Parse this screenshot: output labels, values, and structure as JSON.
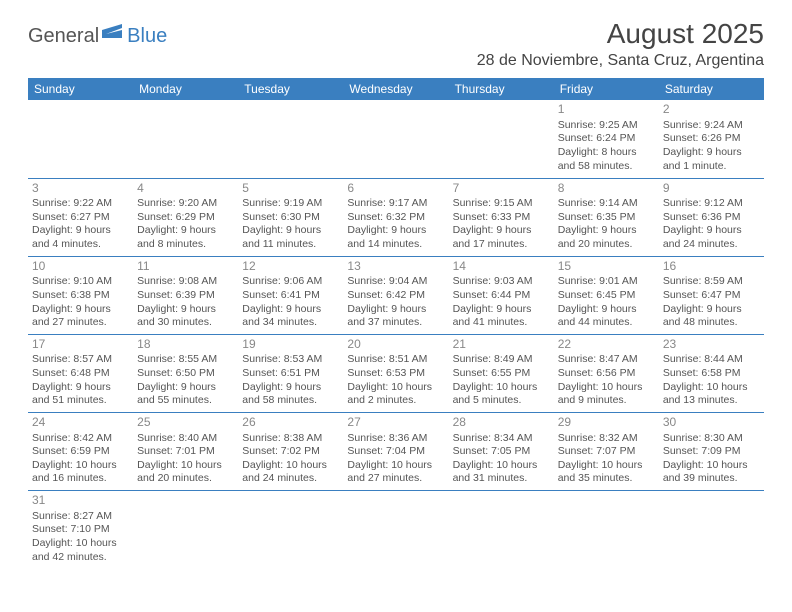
{
  "colors": {
    "brand_blue": "#3a7fc0",
    "text_gray": "#555555",
    "header_text": "#444444",
    "daynum_gray": "#888888",
    "background": "#ffffff"
  },
  "typography": {
    "month_title_size": 28,
    "location_size": 16,
    "day_header_size": 12,
    "daynum_size": 12,
    "cell_text_size": 10.5,
    "logo_size": 20
  },
  "logo": {
    "part1": "General",
    "part2": "Blue"
  },
  "title": "August 2025",
  "location": "28 de Noviembre, Santa Cruz, Argentina",
  "day_headers": [
    "Sunday",
    "Monday",
    "Tuesday",
    "Wednesday",
    "Thursday",
    "Friday",
    "Saturday"
  ],
  "weeks": [
    [
      null,
      null,
      null,
      null,
      null,
      {
        "n": "1",
        "sr": "Sunrise: 9:25 AM",
        "ss": "Sunset: 6:24 PM",
        "d1": "Daylight: 8 hours",
        "d2": "and 58 minutes."
      },
      {
        "n": "2",
        "sr": "Sunrise: 9:24 AM",
        "ss": "Sunset: 6:26 PM",
        "d1": "Daylight: 9 hours",
        "d2": "and 1 minute."
      }
    ],
    [
      {
        "n": "3",
        "sr": "Sunrise: 9:22 AM",
        "ss": "Sunset: 6:27 PM",
        "d1": "Daylight: 9 hours",
        "d2": "and 4 minutes."
      },
      {
        "n": "4",
        "sr": "Sunrise: 9:20 AM",
        "ss": "Sunset: 6:29 PM",
        "d1": "Daylight: 9 hours",
        "d2": "and 8 minutes."
      },
      {
        "n": "5",
        "sr": "Sunrise: 9:19 AM",
        "ss": "Sunset: 6:30 PM",
        "d1": "Daylight: 9 hours",
        "d2": "and 11 minutes."
      },
      {
        "n": "6",
        "sr": "Sunrise: 9:17 AM",
        "ss": "Sunset: 6:32 PM",
        "d1": "Daylight: 9 hours",
        "d2": "and 14 minutes."
      },
      {
        "n": "7",
        "sr": "Sunrise: 9:15 AM",
        "ss": "Sunset: 6:33 PM",
        "d1": "Daylight: 9 hours",
        "d2": "and 17 minutes."
      },
      {
        "n": "8",
        "sr": "Sunrise: 9:14 AM",
        "ss": "Sunset: 6:35 PM",
        "d1": "Daylight: 9 hours",
        "d2": "and 20 minutes."
      },
      {
        "n": "9",
        "sr": "Sunrise: 9:12 AM",
        "ss": "Sunset: 6:36 PM",
        "d1": "Daylight: 9 hours",
        "d2": "and 24 minutes."
      }
    ],
    [
      {
        "n": "10",
        "sr": "Sunrise: 9:10 AM",
        "ss": "Sunset: 6:38 PM",
        "d1": "Daylight: 9 hours",
        "d2": "and 27 minutes."
      },
      {
        "n": "11",
        "sr": "Sunrise: 9:08 AM",
        "ss": "Sunset: 6:39 PM",
        "d1": "Daylight: 9 hours",
        "d2": "and 30 minutes."
      },
      {
        "n": "12",
        "sr": "Sunrise: 9:06 AM",
        "ss": "Sunset: 6:41 PM",
        "d1": "Daylight: 9 hours",
        "d2": "and 34 minutes."
      },
      {
        "n": "13",
        "sr": "Sunrise: 9:04 AM",
        "ss": "Sunset: 6:42 PM",
        "d1": "Daylight: 9 hours",
        "d2": "and 37 minutes."
      },
      {
        "n": "14",
        "sr": "Sunrise: 9:03 AM",
        "ss": "Sunset: 6:44 PM",
        "d1": "Daylight: 9 hours",
        "d2": "and 41 minutes."
      },
      {
        "n": "15",
        "sr": "Sunrise: 9:01 AM",
        "ss": "Sunset: 6:45 PM",
        "d1": "Daylight: 9 hours",
        "d2": "and 44 minutes."
      },
      {
        "n": "16",
        "sr": "Sunrise: 8:59 AM",
        "ss": "Sunset: 6:47 PM",
        "d1": "Daylight: 9 hours",
        "d2": "and 48 minutes."
      }
    ],
    [
      {
        "n": "17",
        "sr": "Sunrise: 8:57 AM",
        "ss": "Sunset: 6:48 PM",
        "d1": "Daylight: 9 hours",
        "d2": "and 51 minutes."
      },
      {
        "n": "18",
        "sr": "Sunrise: 8:55 AM",
        "ss": "Sunset: 6:50 PM",
        "d1": "Daylight: 9 hours",
        "d2": "and 55 minutes."
      },
      {
        "n": "19",
        "sr": "Sunrise: 8:53 AM",
        "ss": "Sunset: 6:51 PM",
        "d1": "Daylight: 9 hours",
        "d2": "and 58 minutes."
      },
      {
        "n": "20",
        "sr": "Sunrise: 8:51 AM",
        "ss": "Sunset: 6:53 PM",
        "d1": "Daylight: 10 hours",
        "d2": "and 2 minutes."
      },
      {
        "n": "21",
        "sr": "Sunrise: 8:49 AM",
        "ss": "Sunset: 6:55 PM",
        "d1": "Daylight: 10 hours",
        "d2": "and 5 minutes."
      },
      {
        "n": "22",
        "sr": "Sunrise: 8:47 AM",
        "ss": "Sunset: 6:56 PM",
        "d1": "Daylight: 10 hours",
        "d2": "and 9 minutes."
      },
      {
        "n": "23",
        "sr": "Sunrise: 8:44 AM",
        "ss": "Sunset: 6:58 PM",
        "d1": "Daylight: 10 hours",
        "d2": "and 13 minutes."
      }
    ],
    [
      {
        "n": "24",
        "sr": "Sunrise: 8:42 AM",
        "ss": "Sunset: 6:59 PM",
        "d1": "Daylight: 10 hours",
        "d2": "and 16 minutes."
      },
      {
        "n": "25",
        "sr": "Sunrise: 8:40 AM",
        "ss": "Sunset: 7:01 PM",
        "d1": "Daylight: 10 hours",
        "d2": "and 20 minutes."
      },
      {
        "n": "26",
        "sr": "Sunrise: 8:38 AM",
        "ss": "Sunset: 7:02 PM",
        "d1": "Daylight: 10 hours",
        "d2": "and 24 minutes."
      },
      {
        "n": "27",
        "sr": "Sunrise: 8:36 AM",
        "ss": "Sunset: 7:04 PM",
        "d1": "Daylight: 10 hours",
        "d2": "and 27 minutes."
      },
      {
        "n": "28",
        "sr": "Sunrise: 8:34 AM",
        "ss": "Sunset: 7:05 PM",
        "d1": "Daylight: 10 hours",
        "d2": "and 31 minutes."
      },
      {
        "n": "29",
        "sr": "Sunrise: 8:32 AM",
        "ss": "Sunset: 7:07 PM",
        "d1": "Daylight: 10 hours",
        "d2": "and 35 minutes."
      },
      {
        "n": "30",
        "sr": "Sunrise: 8:30 AM",
        "ss": "Sunset: 7:09 PM",
        "d1": "Daylight: 10 hours",
        "d2": "and 39 minutes."
      }
    ],
    [
      {
        "n": "31",
        "sr": "Sunrise: 8:27 AM",
        "ss": "Sunset: 7:10 PM",
        "d1": "Daylight: 10 hours",
        "d2": "and 42 minutes."
      },
      null,
      null,
      null,
      null,
      null,
      null
    ]
  ]
}
